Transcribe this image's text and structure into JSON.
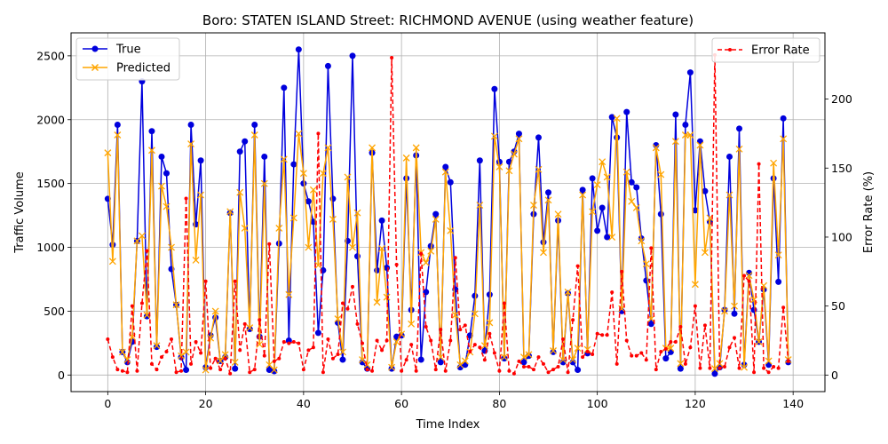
{
  "chart_data": {
    "type": "line",
    "title": "Boro: STATEN ISLAND Street: RICHMOND AVENUE (using weather feature)",
    "xlabel": "Time Index",
    "ylabel": "Traffic Volume",
    "y2label": "Error Rate (%)",
    "xlim": [
      -7.5,
      146.5
    ],
    "ylim": [
      -130,
      2680
    ],
    "y2lim": [
      -12,
      248
    ],
    "xticks": [
      0,
      20,
      40,
      60,
      80,
      100,
      120,
      140
    ],
    "yticks": [
      0,
      500,
      1000,
      1500,
      2000,
      2500
    ],
    "y2ticks": [
      0,
      50,
      100,
      150,
      200
    ],
    "grid": true,
    "legend_left_placement": "upper-left",
    "legend_right_placement": "upper-right",
    "x": [
      0,
      1,
      2,
      3,
      4,
      5,
      6,
      7,
      8,
      9,
      10,
      11,
      12,
      13,
      14,
      15,
      16,
      17,
      18,
      19,
      20,
      21,
      22,
      23,
      24,
      25,
      26,
      27,
      28,
      29,
      30,
      31,
      32,
      33,
      34,
      35,
      36,
      37,
      38,
      39,
      40,
      41,
      42,
      43,
      44,
      45,
      46,
      47,
      48,
      49,
      50,
      51,
      52,
      53,
      54,
      55,
      56,
      57,
      58,
      59,
      60,
      61,
      62,
      63,
      64,
      65,
      66,
      67,
      68,
      69,
      70,
      71,
      72,
      73,
      74,
      75,
      76,
      77,
      78,
      79,
      80,
      81,
      82,
      83,
      84,
      85,
      86,
      87,
      88,
      89,
      90,
      91,
      92,
      93,
      94,
      95,
      96,
      97,
      98,
      99,
      100,
      101,
      102,
      103,
      104,
      105,
      106,
      107,
      108,
      109,
      110,
      111,
      112,
      113,
      114,
      115,
      116,
      117,
      118,
      119,
      120,
      121,
      122,
      123,
      124,
      125,
      126,
      127,
      128,
      129,
      130,
      131,
      132,
      133,
      134,
      135,
      136,
      137,
      138,
      139
    ],
    "series": [
      {
        "name": "True",
        "color": "#0000dd",
        "marker": "circle",
        "axis": "left",
        "values": [
          1380,
          1020,
          1960,
          180,
          100,
          260,
          1050,
          2300,
          460,
          1910,
          220,
          1710,
          1580,
          830,
          550,
          140,
          40,
          1960,
          1180,
          1680,
          60,
          310,
          450,
          110,
          140,
          1270,
          50,
          1750,
          1830,
          360,
          1960,
          300,
          1710,
          40,
          30,
          1030,
          2250,
          270,
          1650,
          2550,
          1500,
          1360,
          1200,
          330,
          820,
          2420,
          1380,
          410,
          120,
          1050,
          2500,
          930,
          100,
          50,
          1740,
          820,
          1210,
          840,
          50,
          300,
          310,
          1540,
          510,
          1720,
          120,
          650,
          1010,
          1260,
          100,
          1630,
          1510,
          670,
          60,
          80,
          310,
          620,
          1680,
          190,
          630,
          2240,
          1670,
          130,
          1670,
          1750,
          1890,
          100,
          150,
          1260,
          1860,
          1040,
          1430,
          180,
          1210,
          100,
          640,
          100,
          40,
          1450,
          170,
          1540,
          1130,
          1310,
          1080,
          2020,
          1860,
          500,
          2060,
          1510,
          1470,
          1070,
          740,
          400,
          1800,
          1260,
          130,
          180,
          2040,
          50,
          1960,
          2370,
          1290,
          1830,
          1440,
          1200,
          10,
          60,
          510,
          1710,
          480,
          1930,
          80,
          800,
          510,
          260,
          670,
          80,
          1540,
          730,
          2010,
          100
        ]
      },
      {
        "name": "Predicted",
        "color": "#ffa500",
        "marker": "x",
        "axis": "left",
        "values": [
          1740,
          890,
          1880,
          180,
          120,
          300,
          1050,
          1090,
          470,
          1760,
          230,
          1480,
          1320,
          1000,
          550,
          150,
          180,
          1810,
          900,
          1410,
          40,
          290,
          500,
          110,
          160,
          1280,
          100,
          1430,
          1150,
          370,
          1880,
          240,
          1500,
          80,
          40,
          1150,
          1690,
          630,
          1230,
          1890,
          1580,
          1000,
          1450,
          860,
          1580,
          1780,
          1220,
          440,
          180,
          1550,
          1000,
          1270,
          120,
          80,
          1780,
          570,
          990,
          610,
          60,
          260,
          320,
          1700,
          400,
          1780,
          960,
          880,
          970,
          1220,
          140,
          1590,
          1130,
          470,
          80,
          110,
          180,
          480,
          1330,
          230,
          410,
          1870,
          1630,
          140,
          1600,
          1730,
          1850,
          140,
          160,
          1330,
          1610,
          960,
          1370,
          190,
          1260,
          120,
          650,
          120,
          210,
          1410,
          200,
          1280,
          1490,
          1670,
          1550,
          1080,
          2010,
          520,
          1590,
          1360,
          1310,
          1050,
          870,
          440,
          1780,
          1570,
          210,
          210,
          1830,
          90,
          1880,
          1880,
          710,
          1800,
          960,
          1230,
          50,
          90,
          500,
          1410,
          540,
          1770,
          60,
          780,
          590,
          260,
          700,
          110,
          1660,
          940,
          1850,
          120
        ]
      },
      {
        "name": "Error Rate",
        "color": "#ff0000",
        "marker": "dot",
        "axis": "right",
        "values": [
          26,
          13,
          4,
          3,
          2,
          50,
          3,
          52,
          90,
          8,
          4,
          13,
          17,
          26,
          2,
          3,
          128,
          8,
          24,
          16,
          68,
          5,
          12,
          4,
          12,
          1,
          68,
          18,
          37,
          2,
          4,
          40,
          14,
          95,
          10,
          12,
          24,
          23,
          24,
          23,
          4,
          18,
          20,
          175,
          2,
          26,
          12,
          15,
          52,
          48,
          64,
          37,
          23,
          4,
          3,
          25,
          18,
          25,
          230,
          80,
          3,
          11,
          22,
          3,
          88,
          35,
          25,
          4,
          33,
          3,
          25,
          85,
          33,
          36,
          17,
          22,
          20,
          11,
          30,
          16,
          3,
          52,
          3,
          1,
          10,
          6,
          6,
          4,
          13,
          8,
          2,
          4,
          6,
          26,
          2,
          40,
          79,
          13,
          17,
          15,
          30,
          29,
          29,
          60,
          8,
          75,
          25,
          14,
          14,
          16,
          11,
          92,
          4,
          17,
          19,
          24,
          24,
          35,
          8,
          20,
          50,
          5,
          36,
          5,
          232,
          5,
          6,
          20,
          27,
          5,
          72,
          68,
          2,
          153,
          5,
          2,
          6,
          5,
          49,
          10
        ]
      }
    ]
  }
}
